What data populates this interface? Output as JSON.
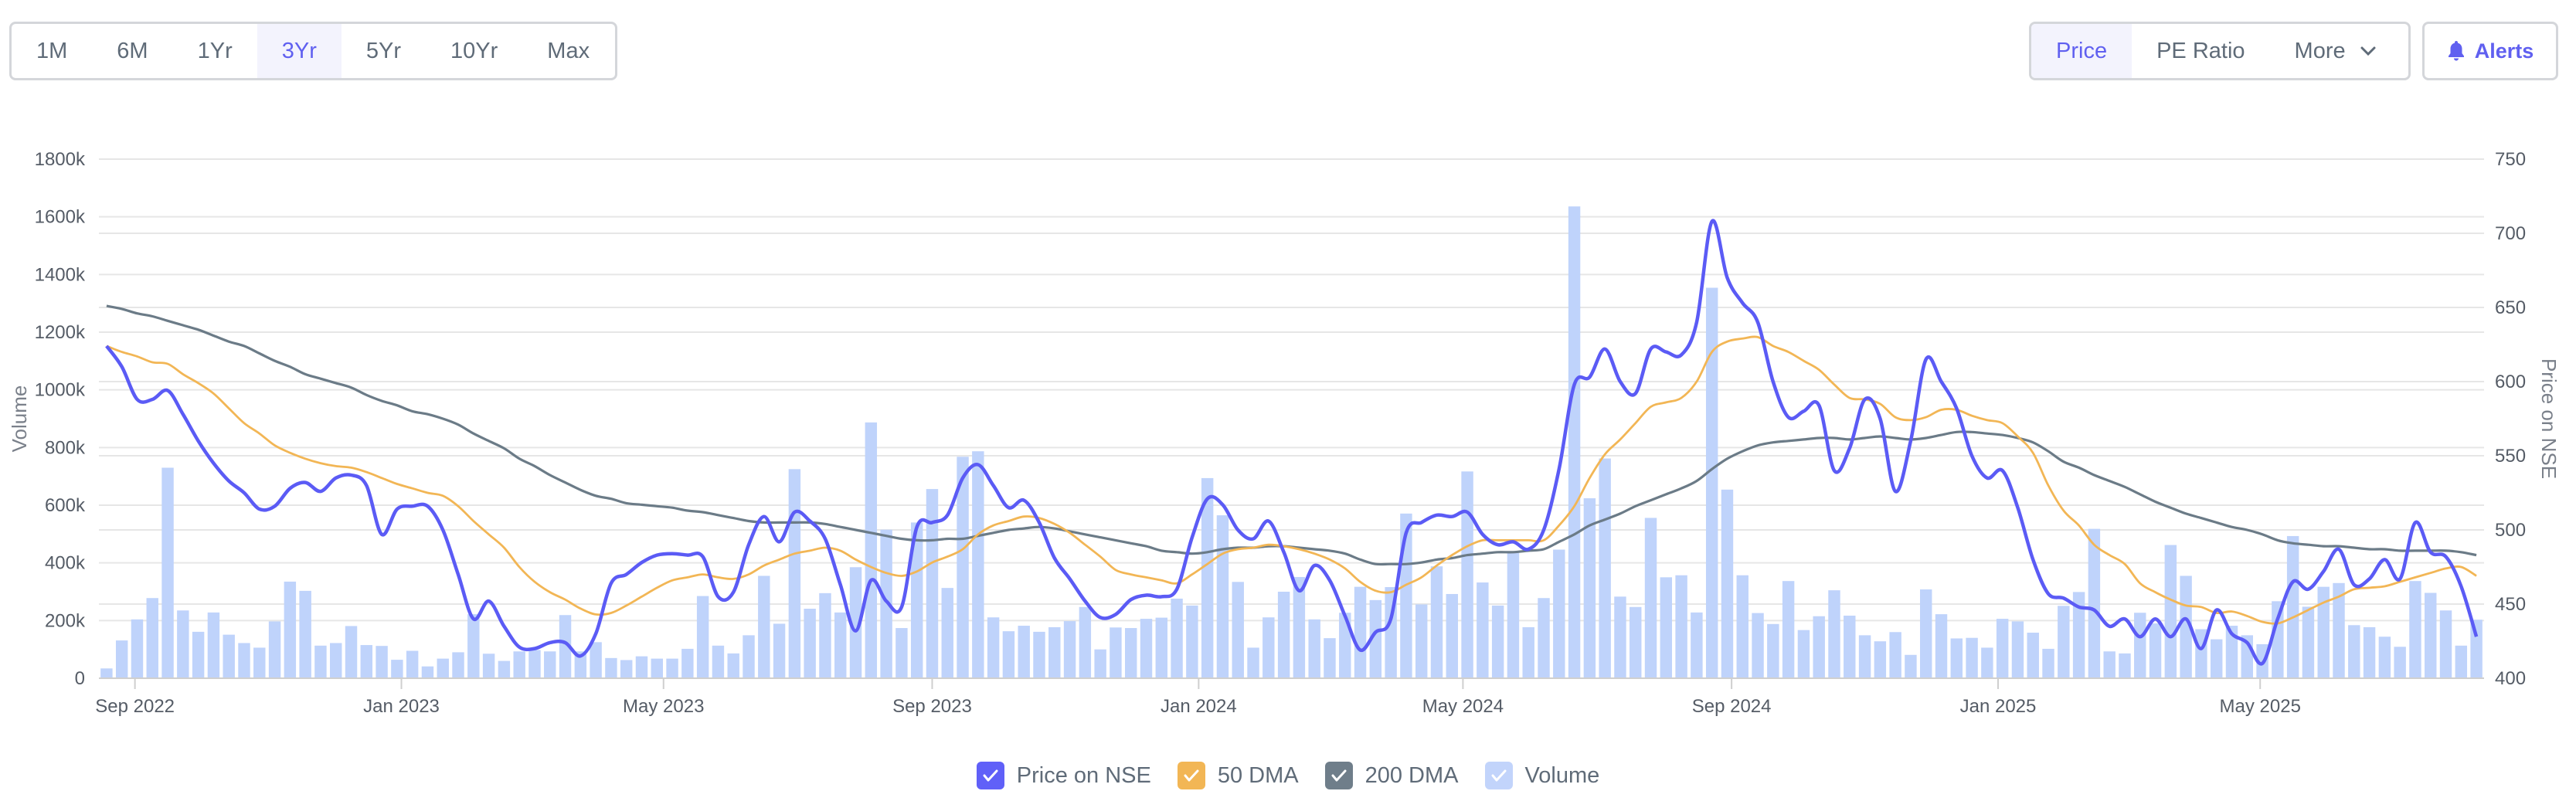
{
  "range_tabs": [
    {
      "label": "1M",
      "active": false
    },
    {
      "label": "6M",
      "active": false
    },
    {
      "label": "1Yr",
      "active": false
    },
    {
      "label": "3Yr",
      "active": true
    },
    {
      "label": "5Yr",
      "active": false
    },
    {
      "label": "10Yr",
      "active": false
    },
    {
      "label": "Max",
      "active": false
    }
  ],
  "view_tabs": [
    {
      "label": "Price",
      "active": true
    },
    {
      "label": "PE Ratio",
      "active": false
    },
    {
      "label": "More",
      "active": false,
      "icon": "chevron-down-icon"
    }
  ],
  "alerts": {
    "label": "Alerts",
    "icon": "bell-icon"
  },
  "colors": {
    "accent": "#6060f0",
    "price": "#5b5bf5",
    "dma50": "#f2b655",
    "dma200": "#6b7b87",
    "volume": "#bfd3fb"
  },
  "legend": [
    {
      "label": "Price on NSE",
      "color": "#6060f8",
      "key": "price"
    },
    {
      "label": "50 DMA",
      "color": "#f2b655",
      "key": "dma50"
    },
    {
      "label": "200 DMA",
      "color": "#6f7e8a",
      "key": "dma200"
    },
    {
      "label": "Volume",
      "color": "#c2d4fb",
      "key": "volume"
    }
  ],
  "chart_data": {
    "type": "bar+line",
    "frequency": "weekly",
    "x_range": [
      "2022-08",
      "2025-08"
    ],
    "x_ticks": [
      {
        "label": "Sep 2022",
        "date": "2022-09"
      },
      {
        "label": "Jan 2023",
        "date": "2023-01"
      },
      {
        "label": "May 2023",
        "date": "2023-05"
      },
      {
        "label": "Sep 2023",
        "date": "2023-09"
      },
      {
        "label": "Jan 2024",
        "date": "2024-01"
      },
      {
        "label": "May 2024",
        "date": "2024-05"
      },
      {
        "label": "Sep 2024",
        "date": "2024-09"
      },
      {
        "label": "Jan 2025",
        "date": "2025-01"
      },
      {
        "label": "May 2025",
        "date": "2025-05"
      }
    ],
    "y_left": {
      "label": "Volume",
      "range": [
        0,
        1800000
      ],
      "ticks": [
        "0",
        "200k",
        "400k",
        "600k",
        "800k",
        "1000k",
        "1200k",
        "1400k",
        "1600k",
        "1800k"
      ]
    },
    "y_right": {
      "label": "Price on NSE",
      "range": [
        400,
        750
      ],
      "ticks": [
        "400",
        "450",
        "500",
        "550",
        "600",
        "650",
        "700",
        "750"
      ]
    },
    "grid": true,
    "legend_position": "bottom",
    "series": [
      {
        "name": "Volume",
        "type": "bar",
        "axis": "left",
        "unit": "k",
        "values": [
          34,
          131,
          204,
          278,
          730,
          235,
          161,
          228,
          151,
          122,
          106,
          197,
          335,
          303,
          113,
          122,
          181,
          115,
          112,
          64,
          95,
          41,
          68,
          90,
          222,
          85,
          60,
          93,
          98,
          93,
          219,
          93,
          125,
          70,
          63,
          76,
          68,
          68,
          102,
          285,
          113,
          86,
          149,
          355,
          189,
          725,
          241,
          295,
          228,
          385,
          887,
          515,
          174,
          540,
          656,
          313,
          768,
          787,
          211,
          163,
          182,
          161,
          177,
          198,
          247,
          100,
          176,
          174,
          206,
          210,
          276,
          252,
          694,
          565,
          334,
          106,
          211,
          300,
          351,
          204,
          139,
          227,
          317,
          271,
          316,
          571,
          256,
          388,
          292,
          717,
          332,
          252,
          438,
          177,
          278,
          446,
          1636,
          624,
          762,
          283,
          247,
          556,
          350,
          357,
          228,
          1354,
          654,
          357,
          226,
          188,
          337,
          167,
          215,
          305,
          217,
          149,
          128,
          160,
          81,
          308,
          222,
          138,
          140,
          106,
          206,
          197,
          158,
          102,
          251,
          299,
          518,
          93,
          86,
          227,
          190,
          462,
          355,
          170,
          135,
          182,
          149,
          118,
          267,
          493,
          248,
          317,
          330,
          184,
          177,
          144,
          109,
          337,
          296,
          235,
          113,
          203
        ]
      },
      {
        "name": "Price on NSE",
        "type": "line",
        "axis": "right",
        "values": [
          624,
          610,
          588,
          588,
          594,
          578,
          560,
          545,
          533,
          525,
          514,
          516,
          528,
          532,
          526,
          535,
          537,
          530,
          497,
          514,
          516,
          516,
          500,
          470,
          440,
          452,
          435,
          421,
          420,
          424,
          424,
          415,
          430,
          464,
          470,
          478,
          483,
          484,
          483,
          482,
          455,
          458,
          490,
          509,
          492,
          512,
          506,
          494,
          463,
          432,
          466,
          452,
          448,
          502,
          505,
          510,
          535,
          544,
          530,
          515,
          520,
          505,
          481,
          467,
          452,
          441,
          443,
          453,
          456,
          455,
          460,
          495,
          521,
          517,
          500,
          494,
          506,
          485,
          459,
          476,
          466,
          442,
          419,
          431,
          440,
          498,
          505,
          510,
          509,
          512,
          497,
          490,
          492,
          487,
          500,
          541,
          598,
          603,
          622,
          600,
          592,
          622,
          620,
          618,
          640,
          708,
          670,
          653,
          640,
          600,
          576,
          580,
          584,
          540,
          555,
          588,
          575,
          526,
          560,
          615,
          600,
          582,
          550,
          535,
          540,
          515,
          480,
          457,
          454,
          448,
          446,
          435,
          440,
          428,
          440,
          428,
          440,
          420,
          446,
          430,
          424,
          410,
          440,
          465,
          460,
          472,
          487,
          463,
          467,
          480,
          467,
          505,
          485,
          482,
          462,
          428
        ]
      },
      {
        "name": "50 DMA",
        "type": "line",
        "axis": "right",
        "values": [
          624,
          620,
          617,
          613,
          612,
          605,
          599,
          592,
          582,
          572,
          565,
          557,
          552,
          548,
          545,
          543,
          542,
          539,
          535,
          531,
          528,
          525,
          523,
          516,
          506,
          497,
          488,
          475,
          465,
          458,
          453,
          447,
          443,
          444,
          449,
          455,
          461,
          466,
          468,
          470,
          468,
          467,
          470,
          476,
          480,
          484,
          486,
          488,
          486,
          480,
          475,
          471,
          469,
          472,
          478,
          482,
          487,
          497,
          503,
          506,
          509,
          508,
          504,
          498,
          490,
          482,
          473,
          470,
          468,
          466,
          464,
          470,
          477,
          484,
          487,
          488,
          490,
          489,
          487,
          484,
          480,
          474,
          465,
          459,
          458,
          463,
          468,
          476,
          483,
          489,
          493,
          493,
          493,
          493,
          493,
          503,
          516,
          535,
          551,
          561,
          572,
          583,
          586,
          589,
          600,
          620,
          627,
          629,
          630,
          624,
          620,
          614,
          608,
          598,
          589,
          588,
          585,
          576,
          574,
          576,
          581,
          581,
          577,
          574,
          572,
          563,
          552,
          530,
          513,
          503,
          490,
          483,
          477,
          464,
          458,
          453,
          449,
          448,
          444,
          445,
          442,
          438,
          437,
          441,
          446,
          451,
          455,
          460,
          461,
          462,
          465,
          468,
          471,
          474,
          475,
          469
        ]
      },
      {
        "name": "200 DMA",
        "type": "line",
        "axis": "right",
        "values": [
          651,
          649,
          646,
          644,
          641,
          638,
          635,
          631,
          627,
          624,
          619,
          614,
          610,
          605,
          602,
          599,
          596,
          591,
          587,
          584,
          580,
          578,
          575,
          571,
          565,
          560,
          555,
          548,
          543,
          537,
          532,
          527,
          523,
          521,
          518,
          517,
          516,
          515,
          513,
          512,
          510,
          508,
          506,
          505,
          505,
          505,
          505,
          504,
          502,
          500,
          498,
          496,
          494,
          493,
          493,
          494,
          494,
          496,
          498,
          500,
          501,
          502,
          501,
          499,
          497,
          495,
          493,
          491,
          489,
          486,
          485,
          484,
          485,
          487,
          488,
          488,
          489,
          489,
          488,
          487,
          486,
          484,
          480,
          477,
          477,
          477,
          478,
          480,
          481,
          483,
          484,
          485,
          485,
          486,
          487,
          492,
          497,
          503,
          507,
          511,
          516,
          520,
          524,
          528,
          533,
          541,
          548,
          553,
          557,
          559,
          560,
          561,
          562,
          562,
          561,
          562,
          563,
          562,
          561,
          562,
          564,
          566,
          566,
          565,
          564,
          562,
          559,
          553,
          546,
          542,
          537,
          533,
          529,
          524,
          519,
          515,
          511,
          508,
          505,
          502,
          500,
          497,
          493,
          491,
          490,
          489,
          489,
          488,
          487,
          487,
          486,
          486,
          486,
          486,
          485,
          483
        ]
      }
    ]
  }
}
